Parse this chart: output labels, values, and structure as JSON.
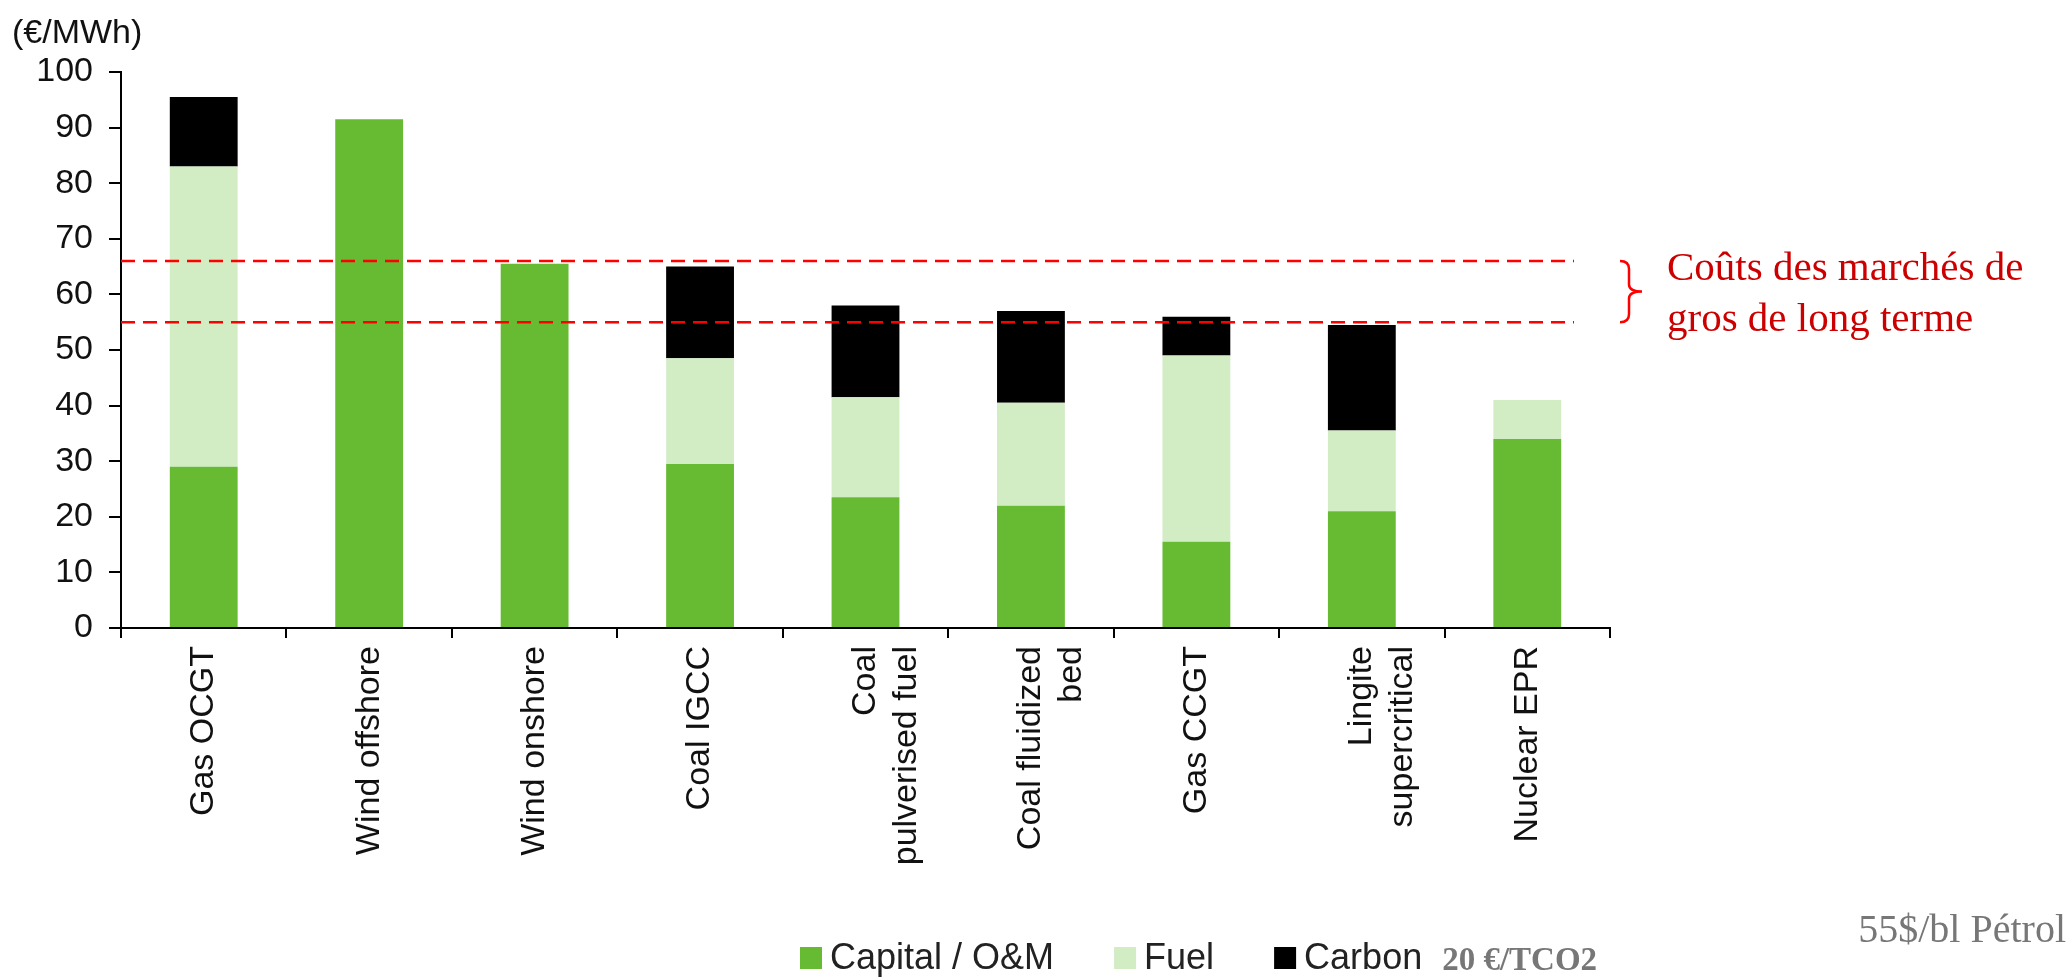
{
  "chart_data": {
    "type": "bar",
    "ylabel": "(€/MWh)",
    "categories": [
      "Gas OCGT",
      "Wind offshore",
      "Wind onshore",
      "Coal IGCC",
      "Coal\npulverised fuel",
      "Coal fluidized\nbed",
      "Gas CCGT",
      "Lingite\nsupercritical",
      "Nuclear EPR"
    ],
    "series": [
      {
        "name": "Capital / O&M",
        "color": "#66bb33",
        "values": [
          29,
          91.5,
          65.5,
          29.5,
          23.5,
          22,
          15.5,
          21,
          34
        ]
      },
      {
        "name": "Fuel",
        "color": "#d2ecc4",
        "values": [
          54,
          null,
          null,
          19,
          18,
          18.5,
          33.5,
          14.5,
          7
        ]
      },
      {
        "name": "Carbon",
        "color": "#000000",
        "values": [
          12.5,
          null,
          null,
          16.5,
          16.5,
          16.5,
          7,
          19,
          null
        ]
      }
    ],
    "stacked": true,
    "ylim": [
      0,
      100
    ],
    "yticks": [
      0,
      10,
      20,
      30,
      40,
      50,
      60,
      70,
      80,
      90,
      100
    ],
    "ref_lines": [
      {
        "axis": "y",
        "value": 66,
        "color": "#ff0000",
        "line_style": "dashed"
      },
      {
        "axis": "y",
        "value": 55,
        "color": "#ff0000",
        "line_style": "dashed"
      }
    ],
    "legend": "bottom",
    "annotations": [
      "Coûts des marchés de gros de long terme",
      "20 €/TCO2",
      "55$/bl Pétrol"
    ]
  }
}
